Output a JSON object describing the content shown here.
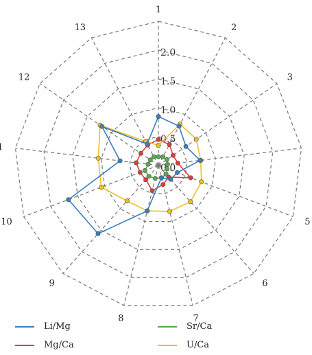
{
  "chart_data": {
    "type": "radar",
    "title": "",
    "axes": [
      "1",
      "2",
      "3",
      "4",
      "5",
      "6",
      "7",
      "8",
      "9",
      "10",
      "11",
      "12",
      "13"
    ],
    "radial_ticks": [
      "0.0",
      "0.5",
      "1.0",
      "1.5",
      "2.0"
    ],
    "rlim": [
      0,
      2.5
    ],
    "grid": true,
    "legend_position": "bottom",
    "series": [
      {
        "name": "Li/Mg",
        "color": "#3a7ebf",
        "values": [
          0.85,
          0.77,
          0.58,
          0.73,
          0.35,
          0.32,
          0.22,
          0.81,
          1.58,
          1.67,
          0.67,
          1.19,
          0.42
        ]
      },
      {
        "name": "Mg/Ca",
        "color": "#d9403c",
        "values": [
          0.45,
          0.41,
          0.31,
          0.34,
          0.6,
          0.27,
          0.34,
          0.45,
          0.33,
          0.34,
          0.39,
          0.37,
          0.4
        ]
      },
      {
        "name": "Sr/Ca",
        "color": "#5aa84f",
        "values": [
          0.15,
          0.17,
          0.18,
          0.16,
          0.16,
          0.2,
          0.22,
          0.23,
          0.25,
          0.25,
          0.18,
          0.17,
          0.17
        ]
      },
      {
        "name": "U/Ca",
        "color": "#f0c020",
        "values": [
          0.35,
          0.81,
          0.8,
          0.74,
          0.8,
          0.84,
          0.82,
          0.81,
          0.82,
          1.06,
          1.05,
          1.23,
          0.47
        ]
      }
    ]
  }
}
